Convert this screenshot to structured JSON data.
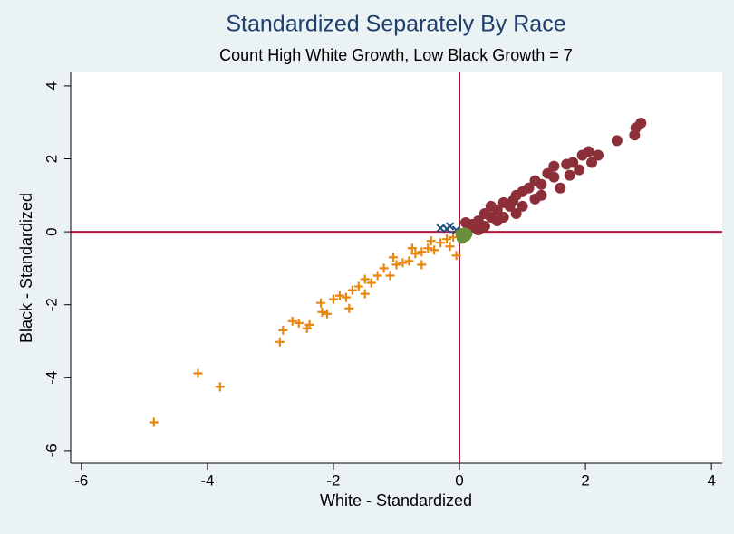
{
  "chart_data": {
    "type": "scatter",
    "title": "Standardized Separately By Race",
    "subtitle": "Count High White Growth, Low Black Growth = 7",
    "xlabel": "White - Standardized",
    "ylabel": "Black - Standardized",
    "xlim": [
      -6.17,
      4.17
    ],
    "ylim": [
      -6.35,
      4.37
    ],
    "xticks": [
      -6,
      -4,
      -2,
      0,
      2,
      4
    ],
    "yticks": [
      -6,
      -4,
      -2,
      0,
      2,
      4
    ],
    "grid": false,
    "reflines": {
      "x": 0,
      "y": 0,
      "color": "#b0173c"
    },
    "series": [
      {
        "color": "#8c2f39",
        "marker": "circle",
        "x": [
          2.88,
          2.8,
          2.78,
          2.5,
          2.2,
          2.05,
          1.95,
          1.8,
          1.7,
          1.5,
          1.5,
          1.4,
          1.3,
          1.2,
          1.1,
          1.0,
          0.9,
          0.85,
          0.8,
          0.7,
          0.6,
          0.5,
          0.5,
          0.4,
          0.3,
          0.2,
          0.15,
          0.1,
          1.6,
          1.2,
          0.9,
          0.6,
          0.3,
          0.4,
          2.1,
          1.9,
          1.0,
          0.7,
          1.3,
          1.75
        ],
        "y": [
          2.98,
          2.85,
          2.65,
          2.5,
          2.1,
          2.2,
          2.1,
          1.9,
          1.85,
          1.8,
          1.5,
          1.6,
          1.3,
          1.4,
          1.2,
          1.1,
          1.0,
          0.85,
          0.7,
          0.8,
          0.6,
          0.7,
          0.4,
          0.5,
          0.3,
          0.2,
          0.1,
          0.25,
          1.2,
          0.9,
          0.5,
          0.3,
          0.05,
          0.15,
          1.9,
          1.7,
          0.7,
          0.4,
          1.0,
          1.55
        ]
      },
      {
        "color": "#e8870e",
        "marker": "plus",
        "x": [
          -4.85,
          -4.15,
          -3.8,
          -2.85,
          -2.8,
          -2.65,
          -2.55,
          -2.42,
          -2.38,
          -2.2,
          -2.18,
          -2.1,
          -2.0,
          -1.9,
          -1.8,
          -1.75,
          -1.7,
          -1.6,
          -1.5,
          -1.5,
          -1.4,
          -1.3,
          -1.2,
          -1.1,
          -1.0,
          -0.9,
          -0.8,
          -0.7,
          -0.6,
          -0.5,
          -0.4,
          -0.3,
          -0.2,
          -0.1,
          -0.05,
          -0.15,
          -0.45,
          -0.75,
          -1.05,
          -0.6
        ],
        "y": [
          -5.22,
          -3.88,
          -4.25,
          -3.02,
          -2.7,
          -2.45,
          -2.5,
          -2.65,
          -2.55,
          -1.95,
          -2.2,
          -2.25,
          -1.85,
          -1.75,
          -1.8,
          -2.1,
          -1.6,
          -1.5,
          -1.7,
          -1.3,
          -1.4,
          -1.2,
          -1.0,
          -1.2,
          -0.9,
          -0.85,
          -0.8,
          -0.6,
          -0.55,
          -0.45,
          -0.5,
          -0.3,
          -0.2,
          -0.15,
          -0.65,
          -0.4,
          -0.25,
          -0.45,
          -0.7,
          -0.9
        ]
      },
      {
        "color": "#1f4e79",
        "marker": "x",
        "x": [
          -0.3,
          -0.15,
          -0.05,
          -0.2
        ],
        "y": [
          0.1,
          0.15,
          0.05,
          0.08
        ]
      },
      {
        "color": "#6a8f3a",
        "marker": "circle",
        "x": [
          0.02,
          0.05,
          0.08,
          0.1,
          0.04,
          0.12,
          0.06
        ],
        "y": [
          -0.05,
          -0.1,
          -0.03,
          -0.12,
          -0.18,
          -0.06,
          -0.14
        ]
      }
    ]
  }
}
